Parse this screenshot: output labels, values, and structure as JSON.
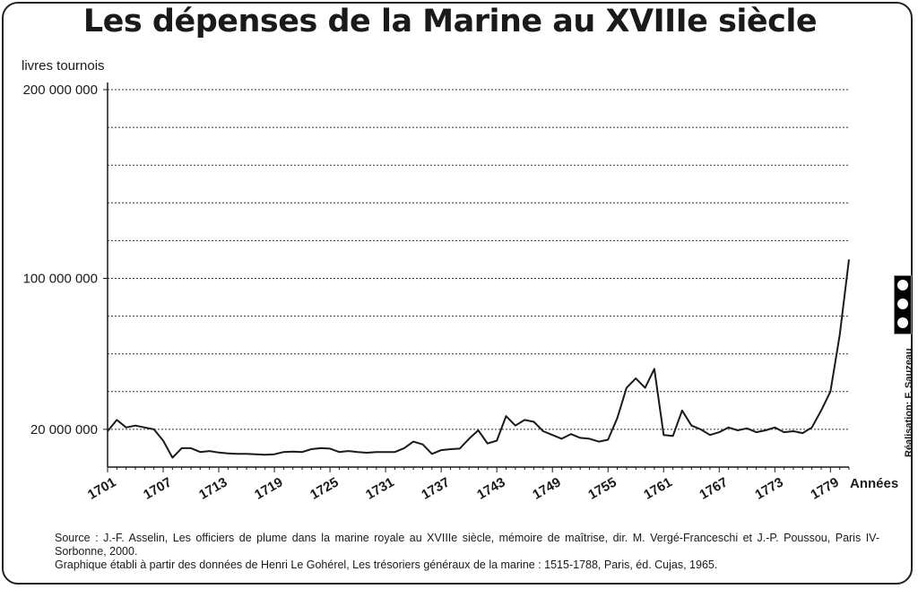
{
  "title": "Les dépenses de la Marine au XVIIIe siècle",
  "ylabel": "livres tournois",
  "xlabel": "Années",
  "source_lines": [
    "Source : J.-F. Asselin, Les officiers de plume dans la marine royale au XVIIIe siècle, mémoire de maîtrise, dir. M. Vergé-Franceschi et J.-P. Poussou, Paris IV-Sorbonne, 2000.",
    "Graphique établi à partir des données de Henri Le Gohérel, Les trésoriers généraux de la marine : 1515-1788, Paris, éd. Cujas, 1965."
  ],
  "credit": "Réalisation: F. Sauzeau",
  "license_icon": "cc-by-nc-sa-badge",
  "colors": {
    "line": "#1a1a1a",
    "grid": "#333333",
    "frame": "#222222"
  },
  "chart_data": {
    "type": "line",
    "title": "Les dépenses de la Marine au XVIIIe siècle",
    "xlabel": "Années",
    "ylabel": "livres tournois",
    "xlim": [
      1701,
      1781
    ],
    "ylim": [
      0,
      200000000
    ],
    "yticks": [
      {
        "value": 20000000,
        "label": "20 000 000"
      },
      {
        "value": 100000000,
        "label": "100 000 000"
      },
      {
        "value": 200000000,
        "label": "200 000 000"
      }
    ],
    "xticks": [
      1701,
      1707,
      1713,
      1719,
      1725,
      1731,
      1737,
      1743,
      1749,
      1755,
      1761,
      1767,
      1773,
      1779
    ],
    "gridlines": [
      20000000,
      40000000,
      60000000,
      80000000,
      100000000,
      120000000,
      140000000,
      160000000,
      180000000,
      200000000
    ],
    "grid": "horizontal dotted",
    "x": [
      1701,
      1702,
      1703,
      1704,
      1705,
      1706,
      1707,
      1708,
      1709,
      1710,
      1711,
      1712,
      1713,
      1714,
      1715,
      1716,
      1717,
      1718,
      1719,
      1720,
      1721,
      1722,
      1723,
      1724,
      1725,
      1726,
      1727,
      1728,
      1729,
      1730,
      1731,
      1732,
      1733,
      1734,
      1735,
      1736,
      1737,
      1738,
      1739,
      1740,
      1741,
      1742,
      1743,
      1744,
      1745,
      1746,
      1747,
      1748,
      1749,
      1750,
      1751,
      1752,
      1753,
      1754,
      1755,
      1756,
      1757,
      1758,
      1759,
      1760,
      1761,
      1762,
      1763,
      1764,
      1765,
      1766,
      1767,
      1768,
      1769,
      1770,
      1771,
      1772,
      1773,
      1774,
      1775,
      1776,
      1777,
      1778,
      1779,
      1780,
      1781
    ],
    "y": [
      19000000,
      25000000,
      21000000,
      22000000,
      21000000,
      20000000,
      14000000,
      5000000,
      10000000,
      10000000,
      8000000,
      8500000,
      7700000,
      7200000,
      7000000,
      7000000,
      6800000,
      6500000,
      6800000,
      8000000,
      8200000,
      8000000,
      9500000,
      10000000,
      9800000,
      8000000,
      8500000,
      8000000,
      7600000,
      8000000,
      8000000,
      8000000,
      10000000,
      13500000,
      12000000,
      7000000,
      9000000,
      9500000,
      9800000,
      15000000,
      19500000,
      12500000,
      14000000,
      27000000,
      22000000,
      25000000,
      24000000,
      19000000,
      17000000,
      15000000,
      17500000,
      15500000,
      15000000,
      13500000,
      14500000,
      26000000,
      42000000,
      47000000,
      42000000,
      52000000,
      17000000,
      16500000,
      30000000,
      22000000,
      20000000,
      17000000,
      18500000,
      21000000,
      19500000,
      20500000,
      18500000,
      19500000,
      21000000,
      18500000,
      19000000,
      18000000,
      21000000,
      30000000,
      40000000,
      70000000,
      110000000
    ]
  }
}
